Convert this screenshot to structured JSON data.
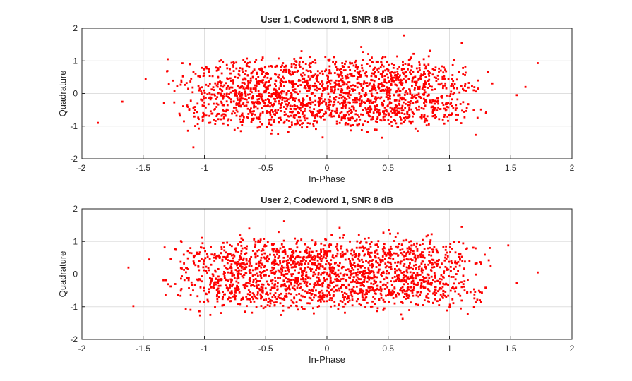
{
  "chart_data": [
    {
      "type": "scatter",
      "title": "User 1, Codeword 1, SNR 8 dB",
      "xlabel": "In-Phase",
      "ylabel": "Quadrature",
      "xlim": [
        -2,
        2
      ],
      "ylim": [
        -2,
        2
      ],
      "xticks": [
        "-2",
        "-1.5",
        "-1",
        "-0.5",
        "0",
        "0.5",
        "1",
        "1.5",
        "2"
      ],
      "yticks": [
        "-2",
        "-1",
        "0",
        "1",
        "2"
      ],
      "grid": true,
      "marker_color": "#ff0000",
      "points_description": "approx. 2000 noisy constellation points clustered in x∈[-1.3,1.3], y∈[-1.3,1.3]",
      "outliers": [
        [
          -1.87,
          -0.9
        ],
        [
          -1.67,
          -0.25
        ],
        [
          -1.48,
          0.45
        ],
        [
          -1.3,
          1.05
        ],
        [
          -1.09,
          -1.65
        ],
        [
          1.72,
          0.93
        ],
        [
          1.62,
          0.2
        ],
        [
          1.55,
          -0.05
        ],
        [
          1.1,
          1.55
        ],
        [
          0.63,
          1.78
        ]
      ]
    },
    {
      "type": "scatter",
      "title": "User 2, Codeword 1, SNR 8 dB",
      "xlabel": "In-Phase",
      "ylabel": "Quadrature",
      "xlim": [
        -2,
        2
      ],
      "ylim": [
        -2,
        2
      ],
      "xticks": [
        "-2",
        "-1.5",
        "-1",
        "-0.5",
        "0",
        "0.5",
        "1",
        "1.5",
        "2"
      ],
      "yticks": [
        "-2",
        "-1",
        "0",
        "1",
        "2"
      ],
      "grid": true,
      "marker_color": "#ff0000",
      "points_description": "approx. 2000 noisy constellation points clustered in x∈[-1.3,1.3], y∈[-1.3,1.3]",
      "outliers": [
        [
          -1.62,
          0.2
        ],
        [
          -1.58,
          -0.98
        ],
        [
          -1.45,
          0.45
        ],
        [
          1.72,
          0.05
        ],
        [
          1.55,
          -0.28
        ],
        [
          1.48,
          0.88
        ],
        [
          1.1,
          1.45
        ],
        [
          -0.35,
          1.62
        ]
      ]
    }
  ]
}
